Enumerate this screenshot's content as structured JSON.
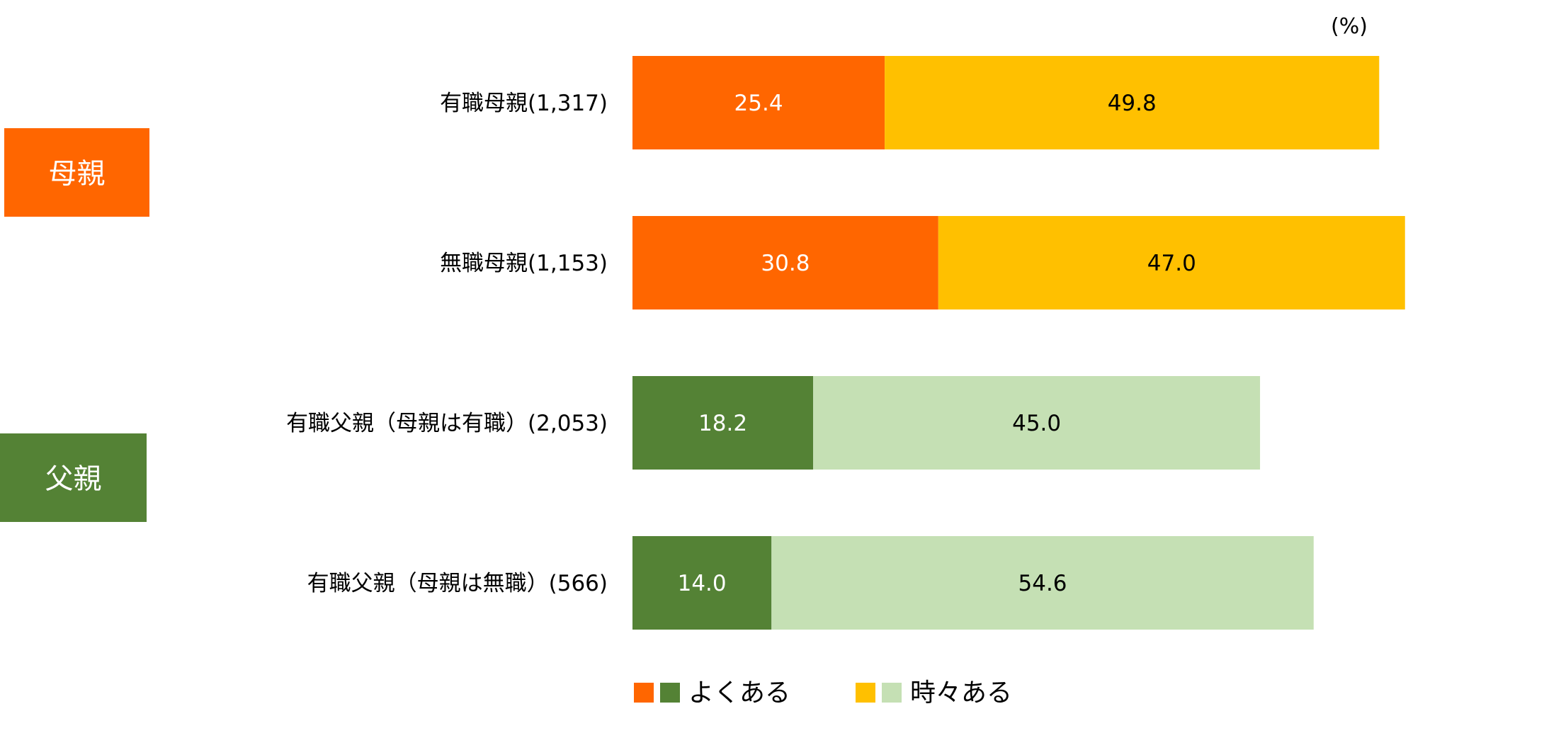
{
  "chart_data": {
    "type": "bar",
    "orientation": "horizontal",
    "stacked": true,
    "unit": "(%)",
    "groups": [
      {
        "label": "母親",
        "color": "#FF6600"
      },
      {
        "label": "父親",
        "color": "#548235"
      }
    ],
    "categories": [
      "有職母親(1,317)",
      "無職母親(1,153)",
      "有職父親（母親は有職）(2,053)",
      "有職父親（母親は無職）(566)"
    ],
    "series": [
      {
        "name": "よくある",
        "values": [
          25.4,
          30.8,
          18.2,
          14.0
        ],
        "colors": [
          "#FF6600",
          "#FF6600",
          "#548235",
          "#548235"
        ],
        "label_colors": [
          "#ffffff",
          "#ffffff",
          "#ffffff",
          "#ffffff"
        ]
      },
      {
        "name": "時々ある",
        "values": [
          49.8,
          47.0,
          45.0,
          54.6
        ],
        "colors": [
          "#FFC000",
          "#FFC000",
          "#C5E0B4",
          "#C5E0B4"
        ],
        "label_colors": [
          "#000000",
          "#000000",
          "#000000",
          "#000000"
        ]
      }
    ],
    "legend": {
      "position": "bottom",
      "items": [
        {
          "text": "よくある",
          "swatches": [
            "#FF6600",
            "#548235"
          ]
        },
        {
          "text": "時々ある",
          "swatches": [
            "#FFC000",
            "#C5E0B4"
          ]
        }
      ]
    },
    "grid": false
  }
}
